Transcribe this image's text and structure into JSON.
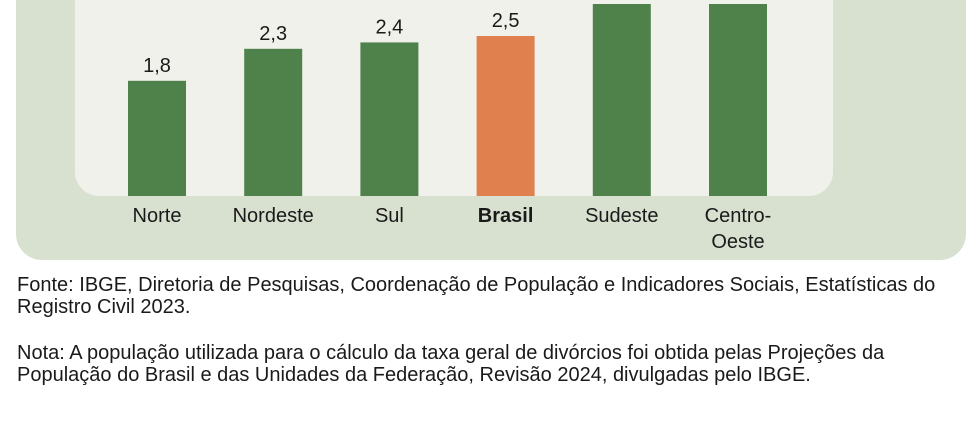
{
  "chart_data": {
    "type": "bar",
    "categories": [
      "Norte",
      "Nordeste",
      "Sul",
      "Brasil",
      "Sudeste",
      "Centro-\nOeste"
    ],
    "values": [
      1.8,
      2.3,
      2.4,
      2.5,
      3.0,
      3.0
    ],
    "value_labels": [
      "1,8",
      "2,3",
      "2,4",
      "2,5",
      "",
      ""
    ],
    "highlight_category": "Brasil",
    "colors": {
      "bar": "#4f824b",
      "highlight": "#e0804f",
      "outer_panel": "#d8e1cf",
      "inner_panel": "#f0f1ea"
    },
    "grid": false,
    "legend": "none"
  },
  "footer": {
    "source": "Fonte: IBGE, Diretoria de Pesquisas, Coordenação de População e Indicadores Sociais, Estatísticas do Registro Civil 2023.",
    "note": "Nota: A população utilizada para o cálculo da taxa geral de divórcios foi obtida pelas Projeções da População do Brasil e das Unidades da Federação, Revisão 2024, divulgadas pelo IBGE."
  }
}
